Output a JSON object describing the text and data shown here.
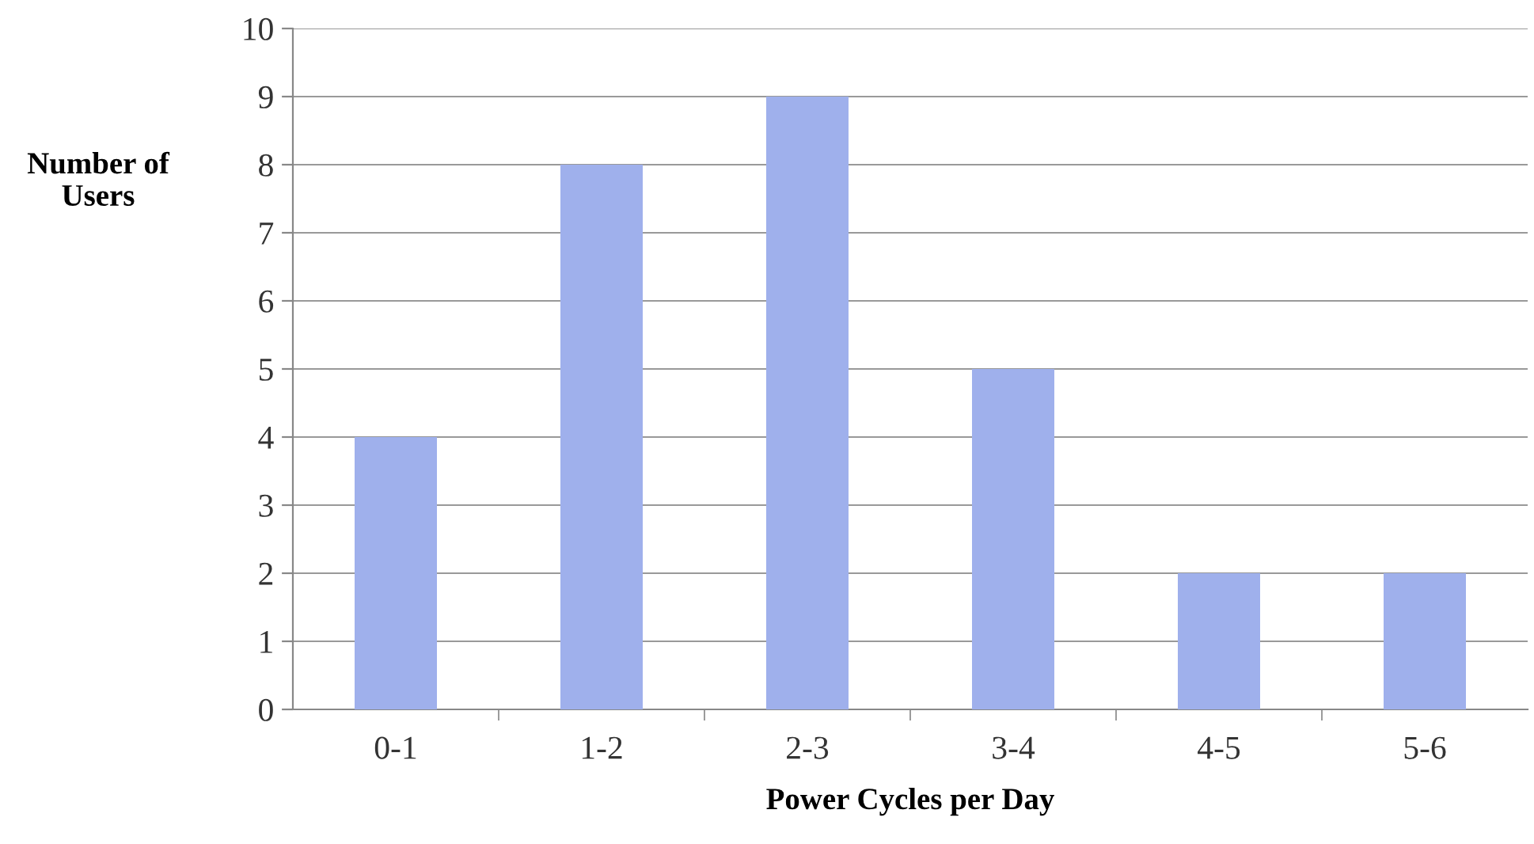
{
  "chart_data": {
    "type": "bar",
    "xlabel": "Power Cycles per Day",
    "ylabel": "Number of\nUsers",
    "categories": [
      "0-1",
      "1-2",
      "2-3",
      "3-4",
      "4-5",
      "5-6"
    ],
    "values": [
      4,
      8,
      9,
      5,
      2,
      2
    ],
    "color": "#9fb0ec",
    "ylim": [
      0,
      10
    ],
    "yticks": [
      0,
      1,
      2,
      3,
      4,
      5,
      6,
      7,
      8,
      9,
      10
    ],
    "grid": "y",
    "legend": false
  }
}
